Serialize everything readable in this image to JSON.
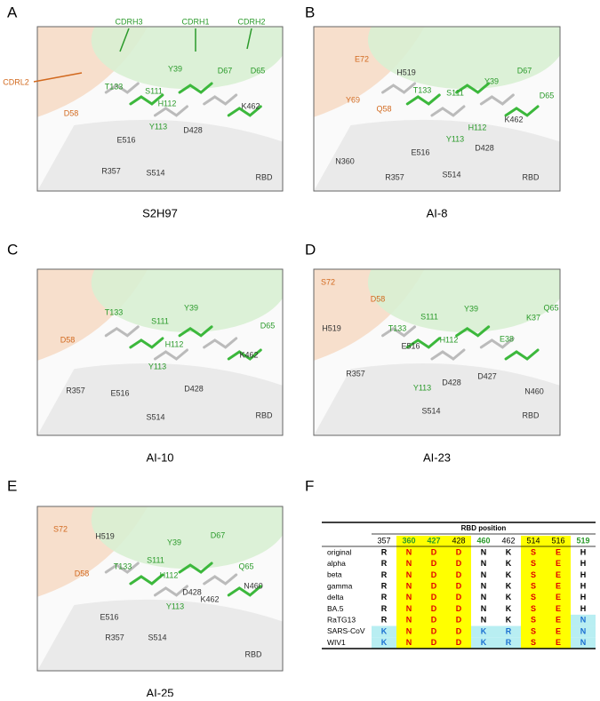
{
  "panels": [
    {
      "letter": "A",
      "caption": "S2H97",
      "heavy_labels": [
        "CDRH3",
        "CDRH1",
        "CDRH2",
        "Y39",
        "D67",
        "D65",
        "T133",
        "S111",
        "H112",
        "Y113"
      ],
      "light_labels": [
        "CDRL2",
        "D58"
      ],
      "rbd_labels": [
        "K462",
        "D428",
        "E516",
        "R357",
        "S514",
        "RBD"
      ]
    },
    {
      "letter": "B",
      "caption": "AI-8",
      "heavy_labels": [
        "T133",
        "S111",
        "Y39",
        "D67",
        "D65",
        "H112",
        "Y113"
      ],
      "light_labels": [
        "E72",
        "Y69",
        "Q58"
      ],
      "rbd_labels": [
        "H519",
        "K462",
        "D428",
        "E516",
        "N360",
        "R357",
        "S514",
        "RBD"
      ]
    },
    {
      "letter": "C",
      "caption": "AI-10",
      "heavy_labels": [
        "T133",
        "S111",
        "Y39",
        "H112",
        "Y113",
        "D65"
      ],
      "light_labels": [
        "D58"
      ],
      "rbd_labels": [
        "K462",
        "R357",
        "E516",
        "D428",
        "S514",
        "RBD"
      ]
    },
    {
      "letter": "D",
      "caption": "AI-23",
      "heavy_labels": [
        "S111",
        "Y39",
        "K37",
        "Q65",
        "T133",
        "H112",
        "E38",
        "Y113"
      ],
      "light_labels": [
        "S72",
        "D58"
      ],
      "rbd_labels": [
        "H519",
        "E516",
        "R357",
        "D428",
        "D427",
        "N460",
        "S514",
        "RBD"
      ]
    },
    {
      "letter": "E",
      "caption": "AI-25",
      "heavy_labels": [
        "Y39",
        "D67",
        "Q65",
        "T133",
        "S111",
        "H112",
        "Y113"
      ],
      "light_labels": [
        "S72",
        "D58"
      ],
      "rbd_labels": [
        "H519",
        "D428",
        "K462",
        "N460",
        "E516",
        "R357",
        "S514",
        "RBD"
      ]
    }
  ],
  "table": {
    "letter": "F",
    "title": "RBD position",
    "columns": [
      "357",
      "360",
      "427",
      "428",
      "460",
      "462",
      "514",
      "516",
      "519"
    ],
    "rows": [
      {
        "name": "original",
        "residues": [
          "R",
          "N",
          "D",
          "D",
          "N",
          "K",
          "S",
          "E",
          "H"
        ]
      },
      {
        "name": "alpha",
        "residues": [
          "R",
          "N",
          "D",
          "D",
          "N",
          "K",
          "S",
          "E",
          "H"
        ]
      },
      {
        "name": "beta",
        "residues": [
          "R",
          "N",
          "D",
          "D",
          "N",
          "K",
          "S",
          "E",
          "H"
        ]
      },
      {
        "name": "gamma",
        "residues": [
          "R",
          "N",
          "D",
          "D",
          "N",
          "K",
          "S",
          "E",
          "H"
        ]
      },
      {
        "name": "delta",
        "residues": [
          "R",
          "N",
          "D",
          "D",
          "N",
          "K",
          "S",
          "E",
          "H"
        ]
      },
      {
        "name": "BA.5",
        "residues": [
          "R",
          "N",
          "D",
          "D",
          "N",
          "K",
          "S",
          "E",
          "H"
        ]
      },
      {
        "name": "RaTG13",
        "residues": [
          "R",
          "N",
          "D",
          "D",
          "N",
          "K",
          "S",
          "E",
          "N"
        ]
      },
      {
        "name": "SARS-CoV",
        "residues": [
          "K",
          "N",
          "D",
          "D",
          "K",
          "R",
          "S",
          "E",
          "N"
        ]
      },
      {
        "name": "WIV1",
        "residues": [
          "K",
          "N",
          "D",
          "D",
          "K",
          "R",
          "S",
          "E",
          "N"
        ]
      }
    ]
  }
}
